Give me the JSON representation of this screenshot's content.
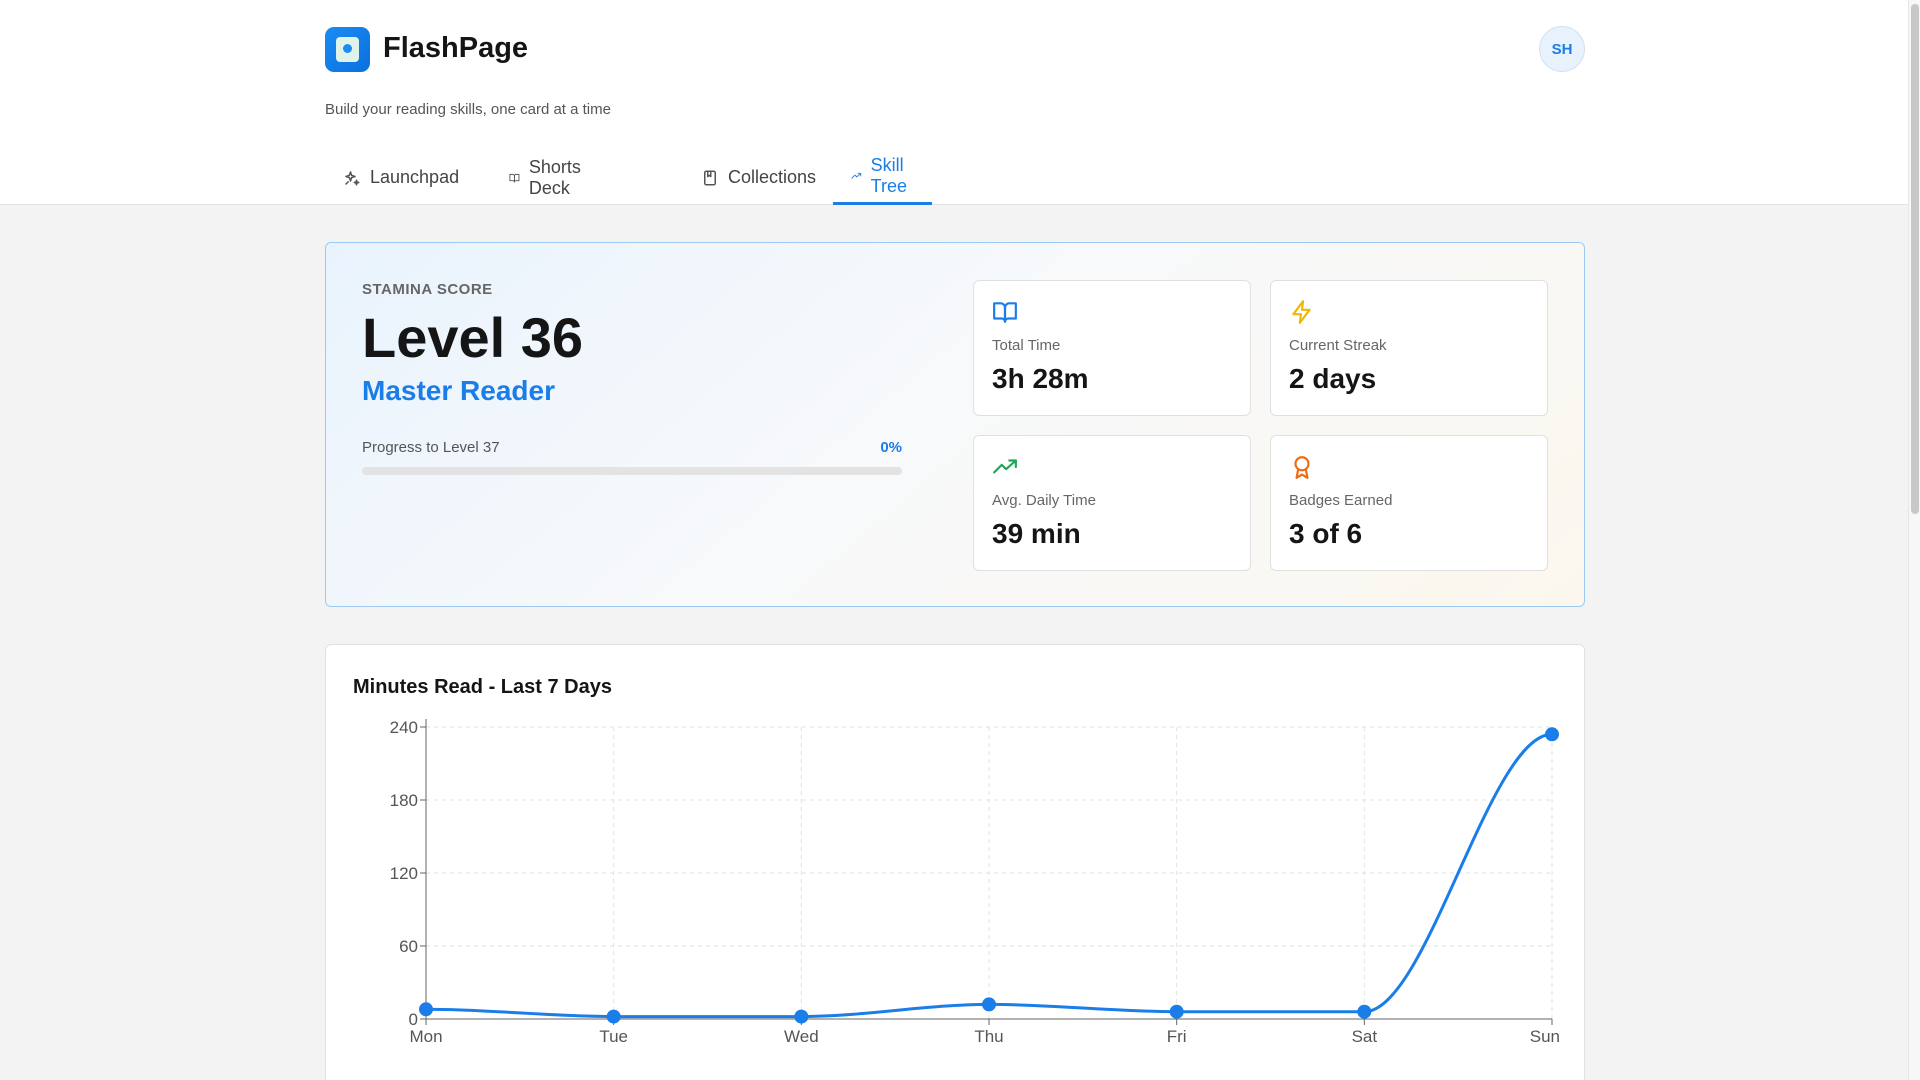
{
  "app": {
    "name": "FlashPage",
    "tagline": "Build your reading skills, one card at a time",
    "avatar_initials": "SH",
    "accent": "#1a7de8"
  },
  "tabs": [
    {
      "label": "Launchpad",
      "icon": "sparkles-icon",
      "active": false
    },
    {
      "label": "Shorts Deck",
      "icon": "book-open-icon",
      "active": false
    },
    {
      "label": "Collections",
      "icon": "bookmark-book-icon",
      "active": false
    },
    {
      "label": "Skill Tree",
      "icon": "trending-up-icon",
      "active": true
    }
  ],
  "stamina": {
    "label": "STAMINA SCORE",
    "level": "Level 36",
    "title": "Master Reader",
    "progress_label": "Progress to Level 37",
    "progress_text": "0%",
    "progress_fraction": 0
  },
  "stats": [
    {
      "label": "Total Time",
      "value": "3h 28m",
      "icon": "book-open-icon",
      "color": "#1a7de8"
    },
    {
      "label": "Current Streak",
      "value": "2 days",
      "icon": "lightning-icon",
      "color": "#f2b705"
    },
    {
      "label": "Avg. Daily Time",
      "value": "39 min",
      "icon": "trending-up-icon",
      "color": "#22a55a"
    },
    {
      "label": "Badges Earned",
      "value": "3 of 6",
      "icon": "award-icon",
      "color": "#ee6a12"
    }
  ],
  "chart_title": "Minutes Read - Last 7 Days",
  "chart_data": {
    "type": "line",
    "title": "Minutes Read - Last 7 Days",
    "categories": [
      "Mon",
      "Tue",
      "Wed",
      "Thu",
      "Fri",
      "Sat",
      "Sun"
    ],
    "values": [
      8,
      2,
      2,
      12,
      6,
      6,
      234
    ],
    "yticks": [
      0,
      60,
      120,
      180,
      240
    ],
    "ylim": [
      0,
      240
    ],
    "grid": true,
    "color": "#1a7de8"
  }
}
